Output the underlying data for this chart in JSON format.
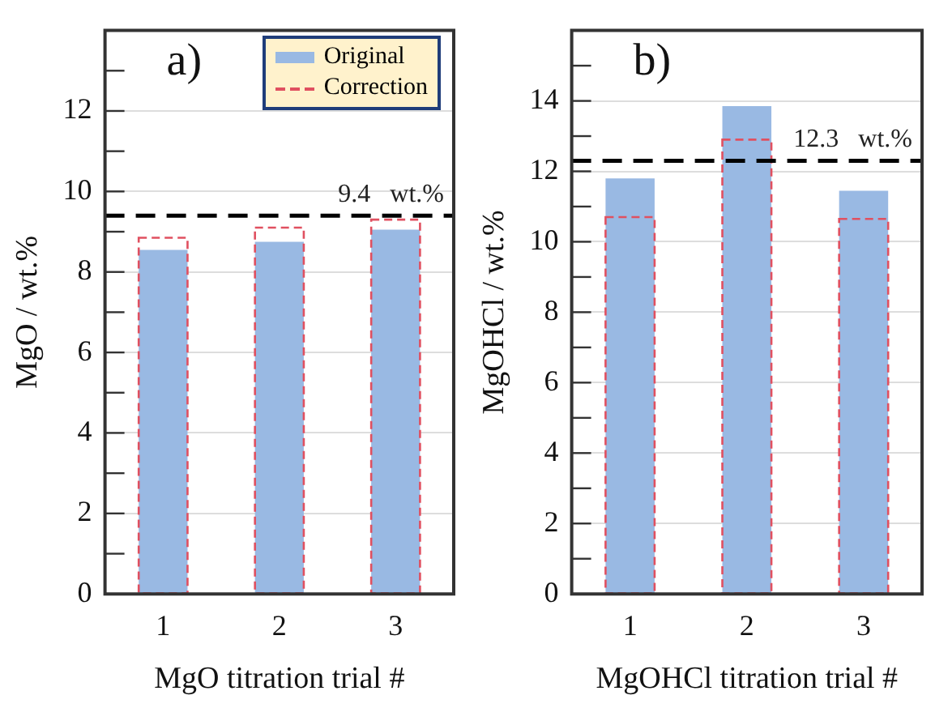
{
  "chart_data": [
    {
      "type": "bar",
      "title": "a)",
      "xlabel": "MgO titration trial #",
      "ylabel": "MgO / wt.%",
      "categories": [
        "1",
        "2",
        "3"
      ],
      "series": [
        {
          "name": "Original",
          "color": "#99b9e3",
          "values": [
            8.55,
            8.75,
            9.05
          ]
        },
        {
          "name": "Correction",
          "color": "#e05060",
          "values": [
            8.85,
            9.1,
            9.3
          ],
          "line_style": "dashed"
        }
      ],
      "ylim": [
        0,
        14
      ],
      "yticks": [
        0,
        {
          "value": 1,
          "label": null
        },
        2,
        {
          "value": 3,
          "label": null
        },
        4,
        {
          "value": 5,
          "label": null
        },
        6,
        {
          "value": 7,
          "label": null
        },
        8,
        {
          "value": 9,
          "label": null
        },
        10,
        {
          "value": 11,
          "label": null
        },
        12,
        {
          "value": 13,
          "label": null
        }
      ],
      "ref_lines": [
        {
          "axis": "y",
          "value": 9.4,
          "label": "9.4   wt.%",
          "color": "#000000",
          "line_style": "dashed"
        }
      ],
      "grid": "y",
      "legend": "top right"
    },
    {
      "type": "bar",
      "title": "b)",
      "xlabel": "MgOHCl titration trial #",
      "ylabel": "MgOHCl / wt.%",
      "categories": [
        "1",
        "2",
        "3"
      ],
      "series": [
        {
          "color": "#99b9e3",
          "values": [
            11.8,
            13.85,
            11.45
          ]
        },
        {
          "color": "#e05060",
          "values": [
            10.7,
            12.9,
            10.65
          ],
          "line_style": "dashed"
        }
      ],
      "ylim": [
        0,
        16
      ],
      "yticks": [
        0,
        {
          "value": 1,
          "label": null
        },
        2,
        {
          "value": 3,
          "label": null
        },
        4,
        {
          "value": 5,
          "label": null
        },
        6,
        {
          "value": 7,
          "label": null
        },
        8,
        {
          "value": 9,
          "label": null
        },
        10,
        {
          "value": 11,
          "label": null
        },
        12,
        {
          "value": 13,
          "label": null
        },
        14,
        {
          "value": 15,
          "label": null
        }
      ],
      "ref_lines": [
        {
          "axis": "y",
          "value": 12.3,
          "label": "12.3   wt.%",
          "color": "#000000",
          "line_style": "dashed"
        }
      ],
      "grid": "y",
      "legend": false
    }
  ]
}
